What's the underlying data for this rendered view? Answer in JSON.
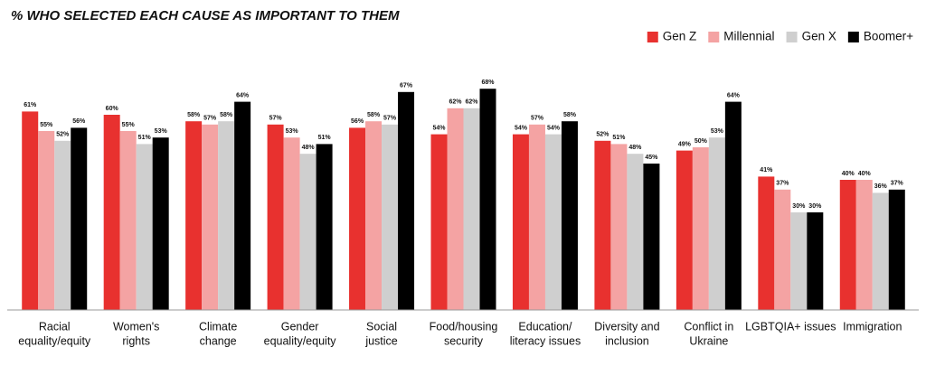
{
  "chart_data": {
    "type": "bar",
    "title": "% WHO SELECTED EACH CAUSE AS IMPORTANT TO THEM",
    "categories": [
      [
        "Racial",
        "equality/equity"
      ],
      [
        "Women's",
        "rights"
      ],
      [
        "Climate",
        "change"
      ],
      [
        "Gender",
        "equality/equity"
      ],
      [
        "Social",
        "justice"
      ],
      [
        "Food/housing",
        "security"
      ],
      [
        "Education/",
        "literacy issues"
      ],
      [
        "Diversity and",
        "inclusion"
      ],
      [
        "Conflict in",
        "Ukraine"
      ],
      [
        "LGBTQIA+ issues"
      ],
      [
        "Immigration"
      ]
    ],
    "series": [
      {
        "name": "Gen Z",
        "color": "#e8312f",
        "values": [
          61,
          60,
          58,
          57,
          56,
          54,
          54,
          52,
          49,
          41,
          40
        ],
        "value_labels": [
          "61%",
          "60%",
          "58%",
          "57%",
          "56%",
          "54%",
          "54%",
          "52%",
          "49%",
          "41%",
          "40%"
        ]
      },
      {
        "name": "Millennial",
        "color": "#f4a3a3",
        "values": [
          55,
          55,
          57,
          53,
          58,
          62,
          57,
          51,
          50,
          37,
          40
        ],
        "value_labels": [
          "55%",
          "55%",
          "57%",
          "53%",
          "58%",
          "62%",
          "57%",
          "51%",
          "50%",
          "37%",
          "40%"
        ]
      },
      {
        "name": "Gen X",
        "color": "#cfcfcf",
        "values": [
          52,
          51,
          58,
          48,
          57,
          62,
          54,
          48,
          53,
          30,
          36
        ],
        "value_labels": [
          "52%",
          "51%",
          "58%",
          "48%",
          "57%",
          "62%",
          "54%",
          "48%",
          "53%",
          "30%",
          "36%"
        ]
      },
      {
        "name": "Boomer+",
        "color": "#000000",
        "values": [
          56,
          53,
          64,
          51,
          67,
          68,
          58,
          45,
          64,
          30,
          37
        ],
        "value_labels": [
          "56%",
          "53%",
          "64%",
          "51%",
          "67%",
          "68%",
          "58%",
          "45%",
          "64%",
          "30%",
          "37%"
        ]
      }
    ],
    "ylim": [
      0,
      75
    ],
    "legend": "top-right"
  }
}
